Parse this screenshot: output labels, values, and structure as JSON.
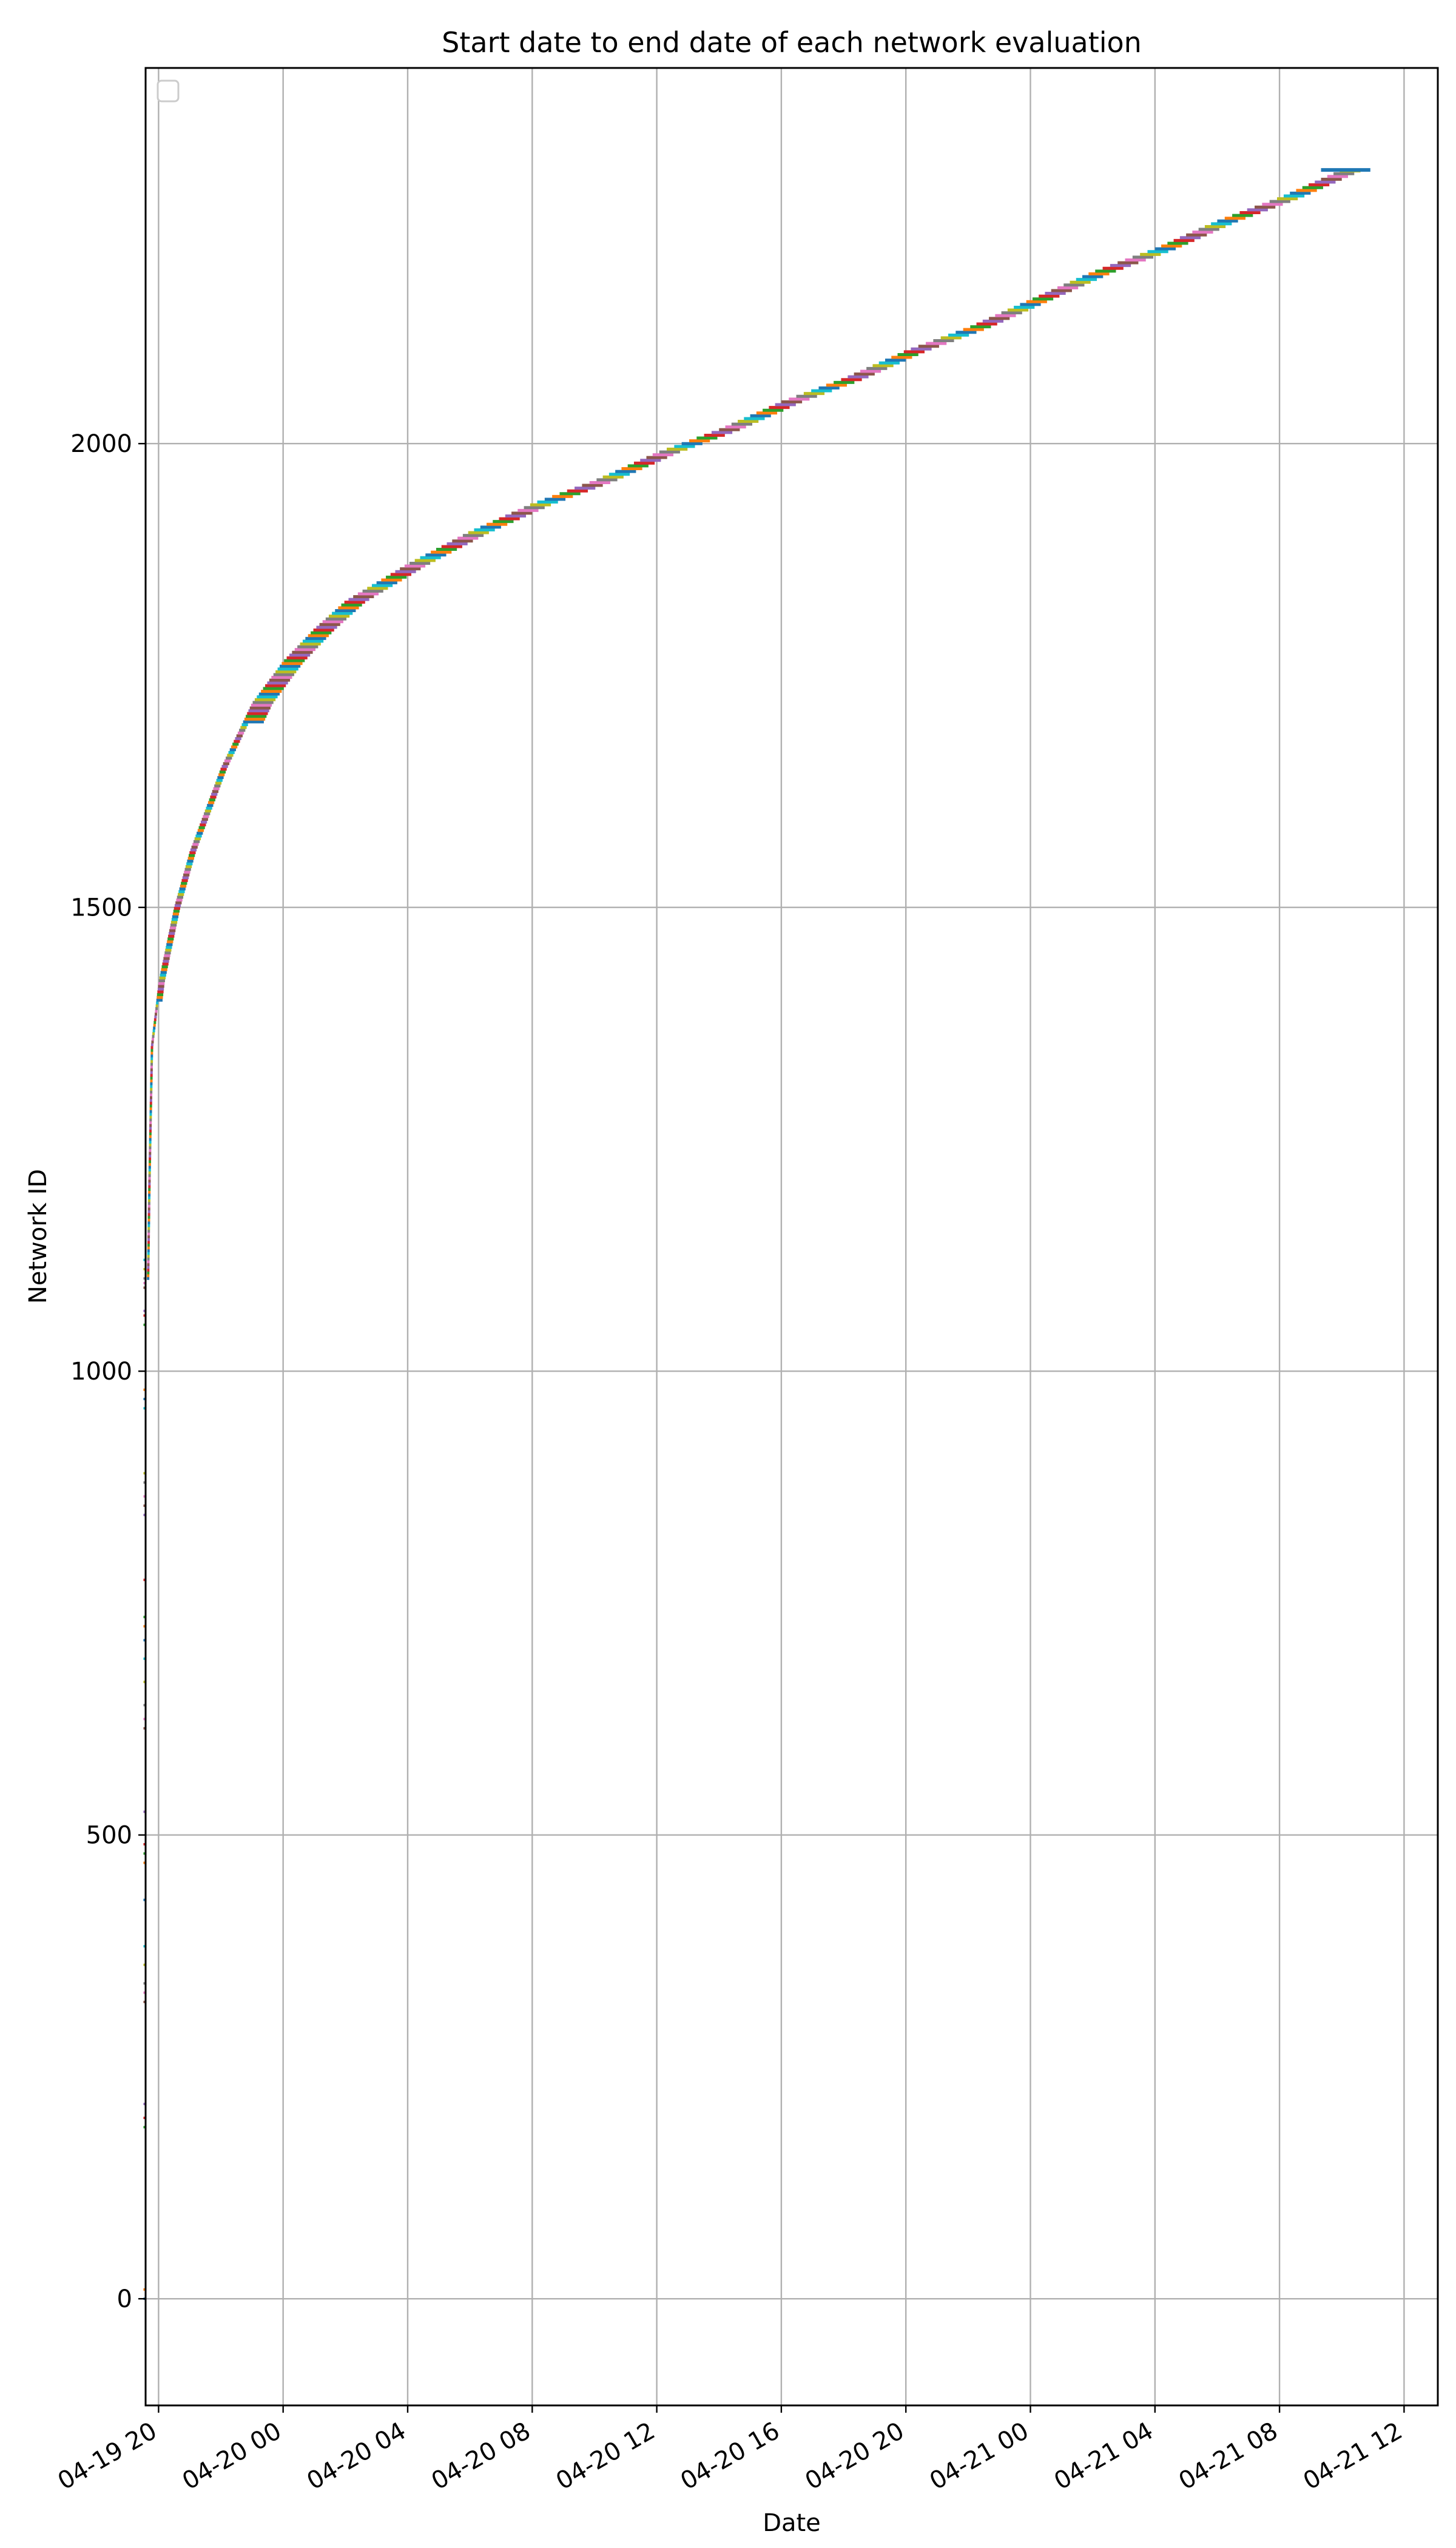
{
  "chart_data": {
    "type": "line",
    "title": "Start date to end date of each network evaluation",
    "xlabel": "Date",
    "ylabel": "Network ID",
    "x_axis_kind": "datetime",
    "xlim": [
      "2019-04-19 19:35",
      "2019-04-21 13:05"
    ],
    "ylim": [
      -115,
      2405
    ],
    "x_ticks": [
      {
        "value": "2019-04-19 20:00",
        "label": "04-19 20"
      },
      {
        "value": "2019-04-20 00:00",
        "label": "04-20 00"
      },
      {
        "value": "2019-04-20 04:00",
        "label": "04-20 04"
      },
      {
        "value": "2019-04-20 08:00",
        "label": "04-20 08"
      },
      {
        "value": "2019-04-20 12:00",
        "label": "04-20 12"
      },
      {
        "value": "2019-04-20 16:00",
        "label": "04-20 16"
      },
      {
        "value": "2019-04-20 20:00",
        "label": "04-20 20"
      },
      {
        "value": "2019-04-21 00:00",
        "label": "04-21 00"
      },
      {
        "value": "2019-04-21 04:00",
        "label": "04-21 04"
      },
      {
        "value": "2019-04-21 08:00",
        "label": "04-21 08"
      },
      {
        "value": "2019-04-21 12:00",
        "label": "04-21 12"
      }
    ],
    "y_ticks": [
      {
        "value": 0,
        "label": "0"
      },
      {
        "value": 500,
        "label": "500"
      },
      {
        "value": 1000,
        "label": "1000"
      },
      {
        "value": 1500,
        "label": "1500"
      },
      {
        "value": 2000,
        "label": "2000"
      }
    ],
    "grid": true,
    "legend": {
      "placement": "top-left",
      "entries": []
    },
    "series_colors": [
      "#1f77b4",
      "#ff7f0e",
      "#2ca02c",
      "#d62728",
      "#9467bd",
      "#8c564b",
      "#e377c2",
      "#7f7f7f",
      "#bcbd22",
      "#17becf"
    ],
    "evaluation_segments": {
      "description_of_shape": "each network ID i is drawn as a short horizontal segment from its start date to its end date",
      "progress_curve": [
        {
          "date": "2019-04-19 19:30",
          "network_id": 0
        },
        {
          "date": "2019-04-19 19:31",
          "network_id": 200
        },
        {
          "date": "2019-04-19 19:32",
          "network_id": 500
        },
        {
          "date": "2019-04-19 19:33",
          "network_id": 800
        },
        {
          "date": "2019-04-19 19:35",
          "network_id": 1000
        },
        {
          "date": "2019-04-19 19:40",
          "network_id": 1200
        },
        {
          "date": "2019-04-19 19:45",
          "network_id": 1350
        },
        {
          "date": "2019-04-19 20:00",
          "network_id": 1420
        },
        {
          "date": "2019-04-19 20:30",
          "network_id": 1500
        },
        {
          "date": "2019-04-19 21:00",
          "network_id": 1560
        },
        {
          "date": "2019-04-19 22:00",
          "network_id": 1650
        },
        {
          "date": "2019-04-19 23:00",
          "network_id": 1720
        },
        {
          "date": "2019-04-20 00:00",
          "network_id": 1765
        },
        {
          "date": "2019-04-20 01:00",
          "network_id": 1800
        },
        {
          "date": "2019-04-20 02:00",
          "network_id": 1830
        },
        {
          "date": "2019-04-20 04:00",
          "network_id": 1870
        },
        {
          "date": "2019-04-20 06:00",
          "network_id": 1905
        },
        {
          "date": "2019-04-20 08:00",
          "network_id": 1935
        },
        {
          "date": "2019-04-20 10:00",
          "network_id": 1960
        },
        {
          "date": "2019-04-20 12:00",
          "network_id": 1990
        },
        {
          "date": "2019-04-20 14:00",
          "network_id": 2015
        },
        {
          "date": "2019-04-20 16:00",
          "network_id": 2045
        },
        {
          "date": "2019-04-20 18:00",
          "network_id": 2070
        },
        {
          "date": "2019-04-20 20:00",
          "network_id": 2100
        },
        {
          "date": "2019-04-20 22:00",
          "network_id": 2125
        },
        {
          "date": "2019-04-21 00:00",
          "network_id": 2155
        },
        {
          "date": "2019-04-21 02:00",
          "network_id": 2185
        },
        {
          "date": "2019-04-21 04:00",
          "network_id": 2210
        },
        {
          "date": "2019-04-21 06:00",
          "network_id": 2240
        },
        {
          "date": "2019-04-21 08:00",
          "network_id": 2265
        },
        {
          "date": "2019-04-21 10:00",
          "network_id": 2295
        }
      ],
      "final_network_id": 2295,
      "final_segment": {
        "start": "2019-04-21 09:20",
        "end": "2019-04-21 10:55",
        "network_id": 2295
      },
      "early_sparse_points": {
        "date": "2019-04-19 19:32",
        "network_ids": [
          0,
          10,
          185,
          195,
          210,
          320,
          330,
          340,
          360,
          380,
          430,
          470,
          480,
          490,
          525,
          615,
          625,
          640,
          665,
          690,
          710,
          725,
          735,
          775,
          845,
          855,
          865,
          880,
          890,
          960,
          970,
          980,
          1050,
          1060,
          1065,
          1090,
          1095,
          1100,
          1110,
          1120
        ]
      }
    }
  }
}
